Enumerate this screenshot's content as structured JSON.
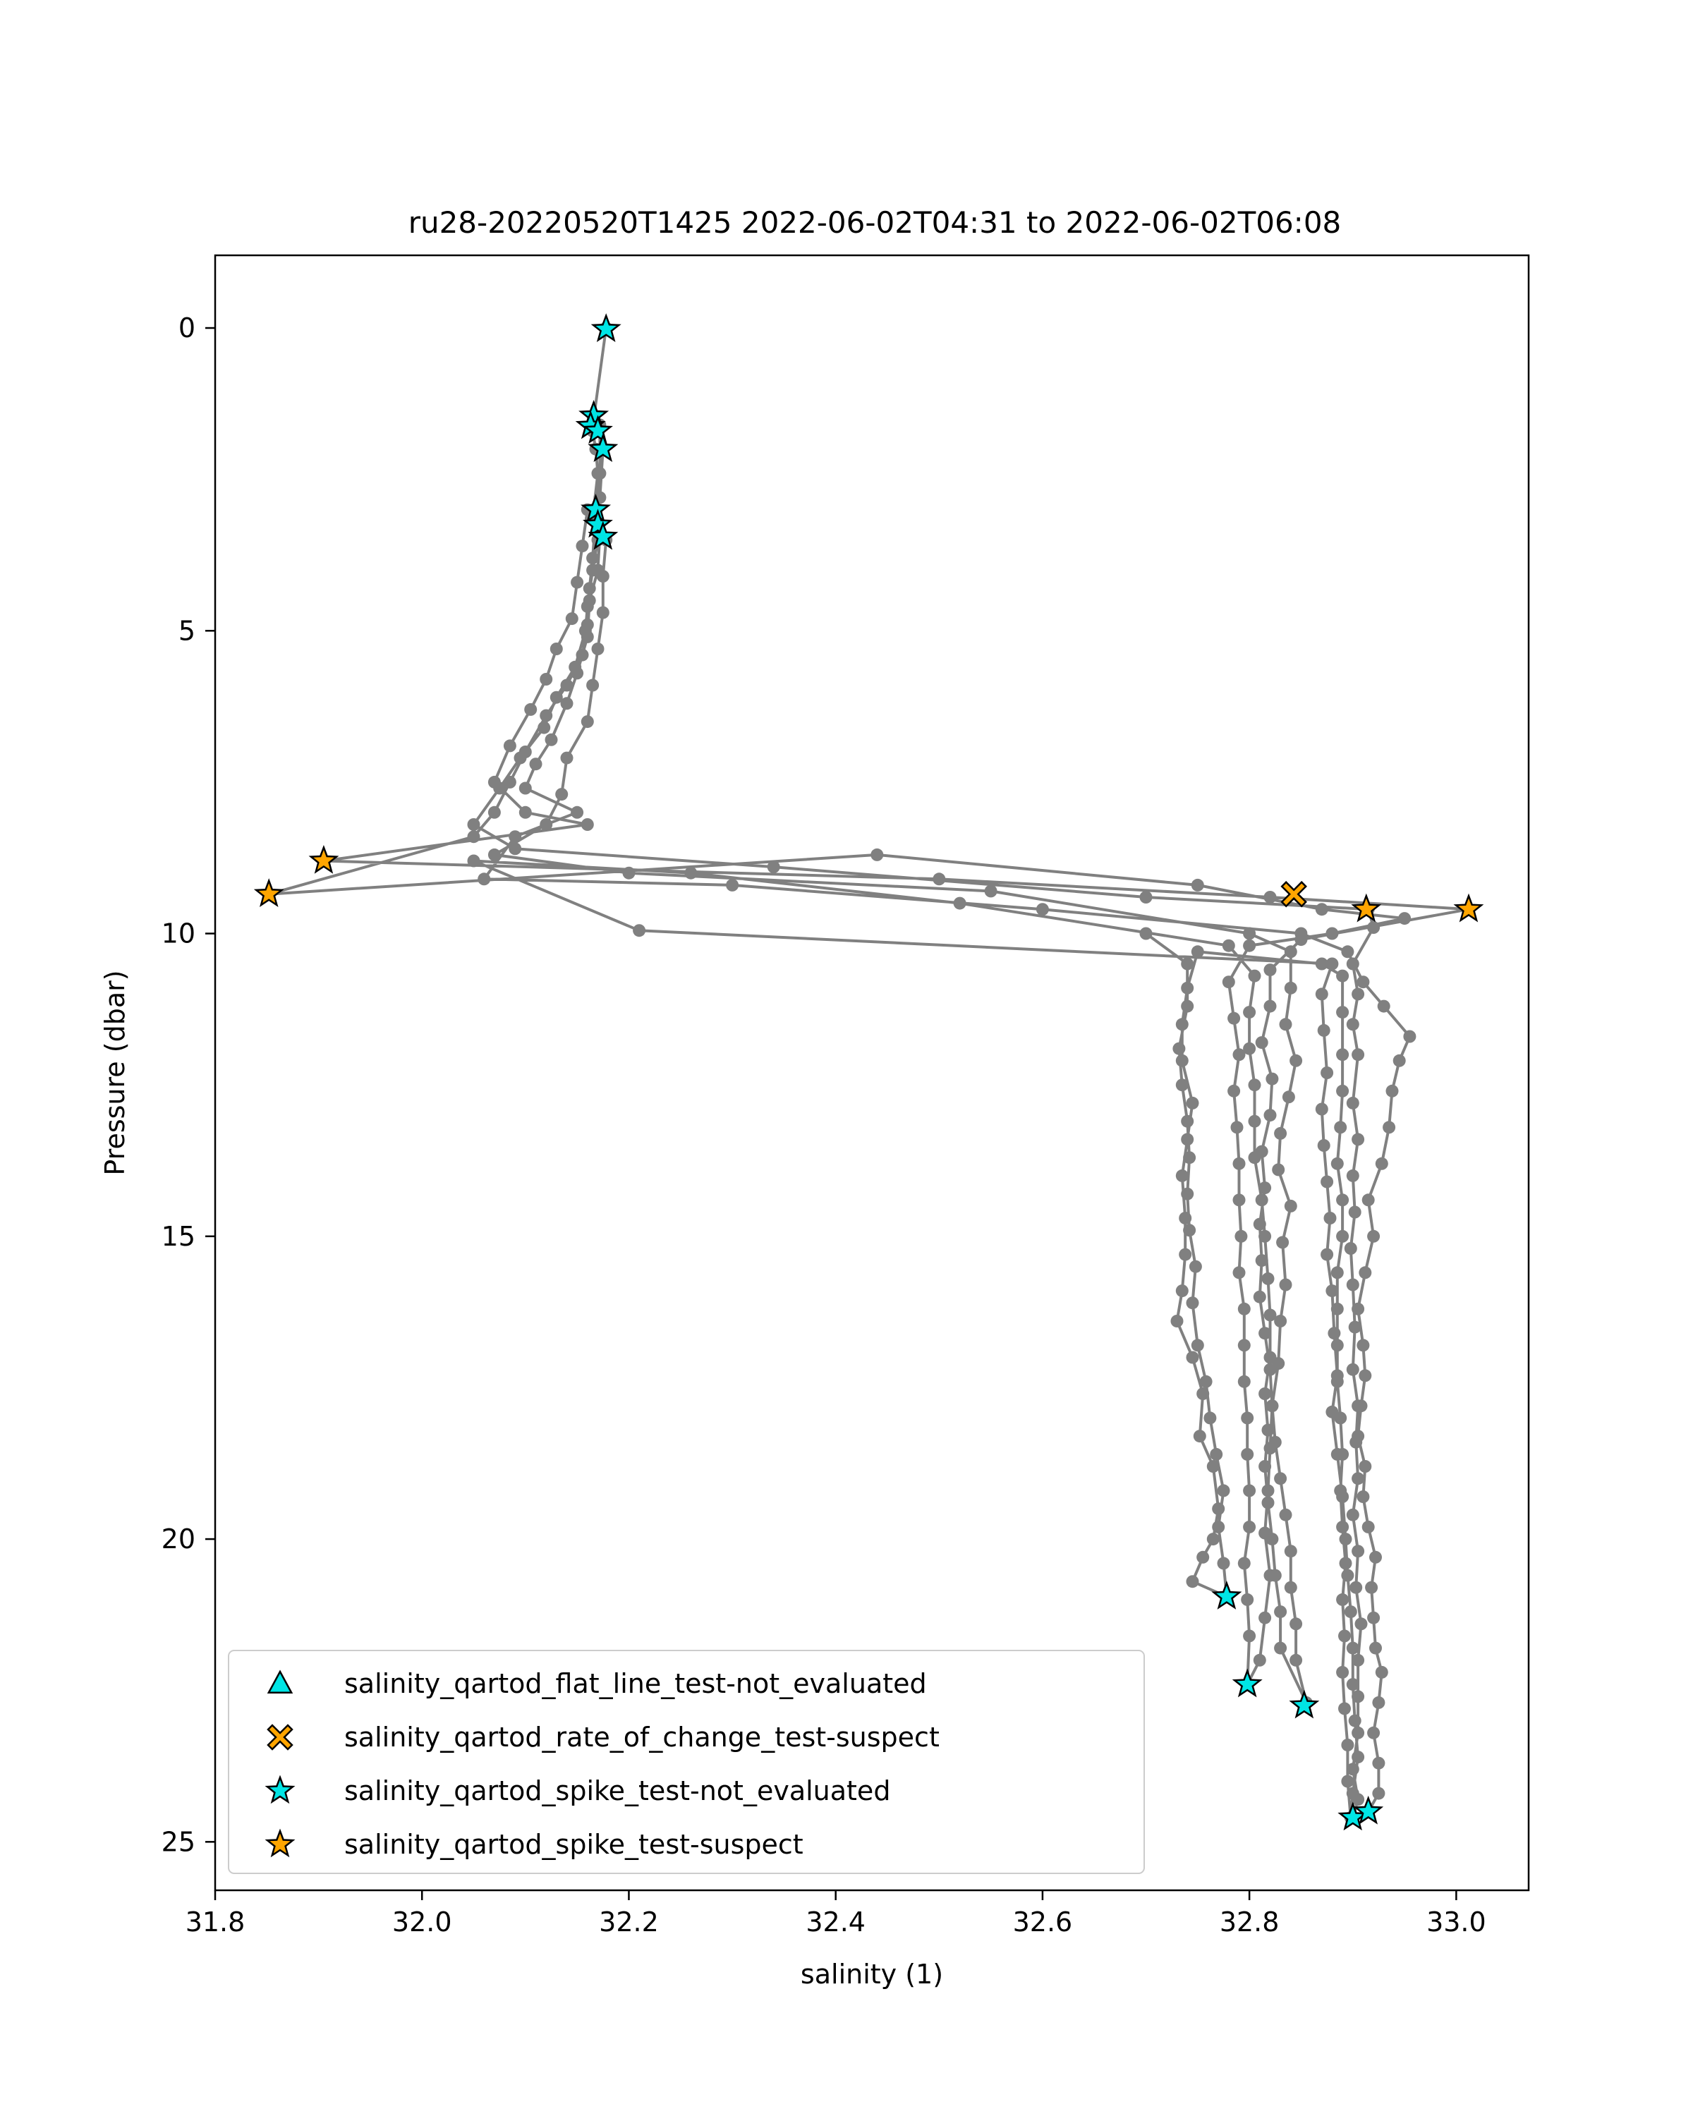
{
  "chart_data": {
    "type": "scatter",
    "title": "ru28-20220520T1425 2022-06-02T04:31 to 2022-06-02T06:08",
    "xlabel": "salinity (1)",
    "ylabel": "Pressure (dbar)",
    "xlim": [
      31.8,
      33.07
    ],
    "ylim": [
      25.8,
      -1.2
    ],
    "y_inverted": true,
    "xticks": [
      31.8,
      32.0,
      32.2,
      32.4,
      32.6,
      32.8,
      33.0
    ],
    "xtick_labels": [
      "31.8",
      "32.0",
      "32.2",
      "32.4",
      "32.6",
      "32.8",
      "33.0"
    ],
    "yticks": [
      0,
      5,
      10,
      15,
      20,
      25
    ],
    "ytick_labels": [
      "0",
      "5",
      "10",
      "15",
      "20",
      "25"
    ],
    "grid": false,
    "legend_position": "lower-left",
    "colors": {
      "profile": "#808080",
      "not_evaluated": "#00e5e5",
      "suspect": "#ffa500",
      "edge": "#000000"
    },
    "profile_track": [
      [
        32.178,
        0.0
      ],
      [
        32.166,
        1.5
      ],
      [
        32.165,
        1.7
      ],
      [
        32.168,
        2.0
      ],
      [
        32.17,
        2.4
      ],
      [
        32.166,
        3.0
      ],
      [
        32.168,
        3.2
      ],
      [
        32.17,
        3.5
      ],
      [
        32.165,
        4.0
      ],
      [
        32.16,
        4.6
      ],
      [
        32.158,
        5.0
      ],
      [
        32.148,
        5.6
      ],
      [
        32.13,
        6.1
      ],
      [
        32.118,
        6.6
      ],
      [
        32.095,
        7.1
      ],
      [
        32.075,
        7.6
      ],
      [
        32.05,
        8.2
      ],
      [
        32.09,
        8.6
      ],
      [
        32.34,
        8.9
      ],
      [
        32.7,
        9.4
      ],
      [
        32.915,
        9.6
      ],
      [
        32.92,
        9.9
      ],
      [
        32.9,
        10.5
      ],
      [
        32.905,
        11.0
      ],
      [
        32.9,
        11.5
      ],
      [
        32.905,
        12.0
      ],
      [
        32.9,
        12.8
      ],
      [
        32.905,
        13.4
      ],
      [
        32.9,
        14.0
      ],
      [
        32.902,
        14.6
      ],
      [
        32.898,
        15.2
      ],
      [
        32.9,
        15.8
      ],
      [
        32.902,
        16.5
      ],
      [
        32.9,
        17.2
      ],
      [
        32.905,
        17.8
      ],
      [
        32.903,
        18.4
      ],
      [
        32.905,
        19.0
      ],
      [
        32.9,
        19.6
      ],
      [
        32.905,
        20.2
      ],
      [
        32.903,
        20.8
      ],
      [
        32.908,
        21.4
      ],
      [
        32.905,
        22.0
      ],
      [
        32.905,
        22.6
      ],
      [
        32.905,
        23.2
      ],
      [
        32.9,
        23.8
      ],
      [
        32.905,
        24.3
      ],
      [
        32.9,
        24.6
      ],
      [
        32.915,
        24.5
      ],
      [
        32.925,
        24.2
      ],
      [
        32.925,
        23.7
      ],
      [
        32.92,
        23.2
      ],
      [
        32.925,
        22.7
      ],
      [
        32.928,
        22.2
      ],
      [
        32.922,
        21.8
      ],
      [
        32.92,
        21.3
      ],
      [
        32.918,
        20.8
      ],
      [
        32.922,
        20.3
      ],
      [
        32.915,
        19.8
      ],
      [
        32.91,
        19.3
      ],
      [
        32.912,
        18.8
      ],
      [
        32.905,
        18.3
      ],
      [
        32.908,
        17.8
      ],
      [
        32.912,
        17.3
      ],
      [
        32.91,
        16.8
      ],
      [
        32.905,
        16.2
      ],
      [
        32.912,
        15.6
      ],
      [
        32.92,
        15.0
      ],
      [
        32.915,
        14.4
      ],
      [
        32.928,
        13.8
      ],
      [
        32.935,
        13.2
      ],
      [
        32.938,
        12.6
      ],
      [
        32.945,
        12.1
      ],
      [
        32.955,
        11.7
      ],
      [
        32.93,
        11.2
      ],
      [
        32.91,
        10.8
      ],
      [
        32.895,
        10.3
      ],
      [
        32.85,
        10.0
      ],
      [
        32.6,
        9.6
      ],
      [
        32.3,
        9.2
      ],
      [
        32.06,
        9.1
      ],
      [
        32.09,
        8.4
      ],
      [
        32.15,
        8.0
      ],
      [
        32.1,
        7.6
      ],
      [
        32.11,
        7.2
      ],
      [
        32.125,
        6.8
      ],
      [
        32.14,
        6.2
      ],
      [
        32.15,
        5.7
      ],
      [
        32.16,
        5.1
      ],
      [
        32.162,
        4.5
      ],
      [
        32.17,
        4.0
      ],
      [
        32.172,
        3.4
      ],
      [
        32.172,
        2.8
      ],
      [
        32.175,
        2.0
      ],
      [
        32.172,
        1.6
      ],
      [
        32.172,
        2.4
      ],
      [
        32.168,
        3.1
      ],
      [
        32.165,
        3.8
      ],
      [
        32.162,
        4.3
      ],
      [
        32.16,
        4.9
      ],
      [
        32.155,
        5.4
      ],
      [
        32.14,
        5.9
      ],
      [
        32.12,
        6.4
      ],
      [
        32.1,
        7.0
      ],
      [
        32.085,
        7.5
      ],
      [
        32.07,
        8.0
      ],
      [
        32.05,
        8.4
      ],
      [
        31.852,
        9.35
      ],
      [
        32.44,
        8.7
      ],
      [
        32.75,
        9.2
      ],
      [
        32.87,
        9.6
      ],
      [
        32.95,
        9.75
      ],
      [
        32.88,
        10.0
      ],
      [
        32.8,
        10.2
      ],
      [
        32.78,
        10.8
      ],
      [
        32.785,
        11.4
      ],
      [
        32.79,
        12.0
      ],
      [
        32.785,
        12.6
      ],
      [
        32.788,
        13.2
      ],
      [
        32.79,
        13.8
      ],
      [
        32.79,
        14.4
      ],
      [
        32.792,
        15.0
      ],
      [
        32.79,
        15.6
      ],
      [
        32.795,
        16.2
      ],
      [
        32.795,
        16.8
      ],
      [
        32.795,
        17.4
      ],
      [
        32.798,
        18.0
      ],
      [
        32.798,
        18.6
      ],
      [
        32.8,
        19.2
      ],
      [
        32.8,
        19.8
      ],
      [
        32.795,
        20.4
      ],
      [
        32.798,
        21.0
      ],
      [
        32.8,
        21.6
      ],
      [
        32.798,
        22.4
      ],
      [
        32.81,
        22.0
      ],
      [
        32.815,
        21.3
      ],
      [
        32.82,
        20.6
      ],
      [
        32.815,
        19.9
      ],
      [
        32.818,
        19.2
      ],
      [
        32.82,
        18.5
      ],
      [
        32.822,
        17.8
      ],
      [
        32.828,
        17.1
      ],
      [
        32.83,
        16.4
      ],
      [
        32.835,
        15.8
      ],
      [
        32.832,
        15.1
      ],
      [
        32.84,
        14.5
      ],
      [
        32.828,
        13.9
      ],
      [
        32.83,
        13.3
      ],
      [
        32.838,
        12.7
      ],
      [
        32.845,
        12.1
      ],
      [
        32.835,
        11.5
      ],
      [
        32.84,
        10.9
      ],
      [
        32.84,
        10.3
      ],
      [
        32.8,
        10.0
      ],
      [
        32.55,
        9.3
      ],
      [
        32.2,
        9.0
      ],
      [
        32.07,
        8.7
      ],
      [
        32.12,
        8.2
      ],
      [
        32.135,
        7.7
      ],
      [
        32.14,
        7.1
      ],
      [
        32.16,
        6.5
      ],
      [
        32.165,
        5.9
      ],
      [
        32.17,
        5.3
      ],
      [
        32.175,
        4.7
      ],
      [
        32.175,
        4.1
      ],
      [
        32.178,
        3.5
      ],
      [
        32.16,
        3.0
      ],
      [
        32.155,
        3.6
      ],
      [
        32.15,
        4.2
      ],
      [
        32.145,
        4.8
      ],
      [
        32.13,
        5.3
      ],
      [
        32.12,
        5.8
      ],
      [
        32.105,
        6.3
      ],
      [
        32.085,
        6.9
      ],
      [
        32.07,
        7.5
      ],
      [
        32.1,
        8.0
      ],
      [
        32.16,
        8.2
      ],
      [
        31.905,
        8.8
      ],
      [
        32.5,
        9.1
      ],
      [
        32.82,
        9.4
      ],
      [
        33.012,
        9.6
      ],
      [
        32.85,
        10.1
      ],
      [
        32.82,
        10.6
      ],
      [
        32.82,
        11.2
      ],
      [
        32.812,
        11.8
      ],
      [
        32.822,
        12.4
      ],
      [
        32.82,
        13.0
      ],
      [
        32.812,
        13.6
      ],
      [
        32.815,
        14.2
      ],
      [
        32.81,
        14.8
      ],
      [
        32.812,
        15.4
      ],
      [
        32.81,
        16.0
      ],
      [
        32.815,
        16.6
      ],
      [
        32.82,
        17.2
      ],
      [
        32.822,
        17.8
      ],
      [
        32.825,
        18.4
      ],
      [
        32.83,
        19.0
      ],
      [
        32.835,
        19.6
      ],
      [
        32.84,
        20.2
      ],
      [
        32.84,
        20.8
      ],
      [
        32.845,
        21.4
      ],
      [
        32.845,
        22.0
      ],
      [
        32.855,
        22.7
      ],
      [
        32.83,
        21.8
      ],
      [
        32.83,
        21.2
      ],
      [
        32.825,
        20.6
      ],
      [
        32.822,
        20.0
      ],
      [
        32.818,
        19.4
      ],
      [
        32.815,
        18.8
      ],
      [
        32.818,
        18.2
      ],
      [
        32.815,
        17.6
      ],
      [
        32.82,
        17.0
      ],
      [
        32.82,
        16.3
      ],
      [
        32.818,
        15.7
      ],
      [
        32.815,
        15.0
      ],
      [
        32.812,
        14.4
      ],
      [
        32.805,
        13.7
      ],
      [
        32.805,
        13.1
      ],
      [
        32.805,
        12.5
      ],
      [
        32.8,
        11.9
      ],
      [
        32.8,
        11.3
      ],
      [
        32.805,
        10.7
      ],
      [
        32.78,
        10.2
      ],
      [
        32.52,
        9.5
      ],
      [
        32.26,
        9.0
      ],
      [
        32.05,
        8.8
      ],
      [
        32.21,
        9.95
      ],
      [
        32.88,
        10.5
      ],
      [
        32.87,
        11.0
      ],
      [
        32.872,
        11.6
      ],
      [
        32.875,
        12.3
      ],
      [
        32.87,
        12.9
      ],
      [
        32.872,
        13.5
      ],
      [
        32.875,
        14.1
      ],
      [
        32.878,
        14.7
      ],
      [
        32.875,
        15.3
      ],
      [
        32.88,
        15.9
      ],
      [
        32.882,
        16.6
      ],
      [
        32.885,
        17.3
      ],
      [
        32.88,
        17.9
      ],
      [
        32.885,
        18.6
      ],
      [
        32.89,
        19.3
      ],
      [
        32.893,
        20.0
      ],
      [
        32.895,
        20.6
      ],
      [
        32.898,
        21.2
      ],
      [
        32.9,
        21.8
      ],
      [
        32.9,
        22.4
      ],
      [
        32.902,
        23.0
      ],
      [
        32.905,
        23.6
      ],
      [
        32.9,
        24.2
      ],
      [
        32.898,
        24.6
      ],
      [
        32.895,
        24.0
      ],
      [
        32.895,
        23.4
      ],
      [
        32.892,
        22.8
      ],
      [
        32.89,
        22.2
      ],
      [
        32.892,
        21.6
      ],
      [
        32.89,
        21.0
      ],
      [
        32.893,
        20.4
      ],
      [
        32.89,
        19.8
      ],
      [
        32.888,
        19.2
      ],
      [
        32.89,
        18.6
      ],
      [
        32.888,
        18.0
      ],
      [
        32.885,
        17.4
      ],
      [
        32.885,
        16.8
      ],
      [
        32.885,
        16.2
      ],
      [
        32.885,
        15.6
      ],
      [
        32.89,
        15.0
      ],
      [
        32.89,
        14.4
      ],
      [
        32.885,
        13.8
      ],
      [
        32.888,
        13.2
      ],
      [
        32.89,
        12.6
      ],
      [
        32.89,
        12.0
      ],
      [
        32.89,
        11.3
      ],
      [
        32.89,
        10.7
      ],
      [
        32.87,
        10.5
      ],
      [
        32.75,
        10.3
      ],
      [
        32.74,
        10.9
      ],
      [
        32.735,
        11.5
      ],
      [
        32.735,
        12.1
      ],
      [
        32.745,
        12.8
      ],
      [
        32.74,
        13.4
      ],
      [
        32.735,
        14.0
      ],
      [
        32.738,
        14.7
      ],
      [
        32.738,
        15.3
      ],
      [
        32.735,
        15.9
      ],
      [
        32.73,
        16.4
      ],
      [
        32.745,
        17.0
      ],
      [
        32.755,
        17.6
      ],
      [
        32.752,
        18.3
      ],
      [
        32.765,
        18.8
      ],
      [
        32.77,
        19.5
      ],
      [
        32.765,
        20.0
      ],
      [
        32.755,
        20.3
      ],
      [
        32.745,
        20.7
      ],
      [
        32.778,
        20.95
      ],
      [
        32.775,
        20.4
      ],
      [
        32.77,
        19.8
      ],
      [
        32.775,
        19.2
      ],
      [
        32.768,
        18.6
      ],
      [
        32.762,
        18.0
      ],
      [
        32.758,
        17.4
      ],
      [
        32.75,
        16.8
      ],
      [
        32.745,
        16.1
      ],
      [
        32.748,
        15.5
      ],
      [
        32.742,
        14.9
      ],
      [
        32.74,
        14.3
      ],
      [
        32.742,
        13.7
      ],
      [
        32.74,
        13.1
      ],
      [
        32.735,
        12.5
      ],
      [
        32.732,
        11.9
      ],
      [
        32.74,
        11.2
      ],
      [
        32.74,
        10.5
      ],
      [
        32.7,
        10.0
      ]
    ],
    "series": [
      {
        "name": "salinity_qartod_flat_line_test-not_evaluated",
        "marker": "triangle",
        "color": "#00e5e5",
        "points": []
      },
      {
        "name": "salinity_qartod_rate_of_change_test-suspect",
        "marker": "x-filled",
        "color": "#ffa500",
        "points": [
          [
            32.843,
            9.35
          ]
        ]
      },
      {
        "name": "salinity_qartod_spike_test-not_evaluated",
        "marker": "star",
        "color": "#00e5e5",
        "points": [
          [
            32.178,
            0.02
          ],
          [
            32.166,
            1.45
          ],
          [
            32.163,
            1.62
          ],
          [
            32.17,
            1.7
          ],
          [
            32.175,
            2.0
          ],
          [
            32.168,
            3.0
          ],
          [
            32.17,
            3.25
          ],
          [
            32.175,
            3.45
          ],
          [
            32.778,
            20.95
          ],
          [
            32.798,
            22.4
          ],
          [
            32.853,
            22.75
          ],
          [
            32.9,
            24.6
          ],
          [
            32.915,
            24.5
          ]
        ]
      },
      {
        "name": "salinity_qartod_spike_test-suspect",
        "marker": "star",
        "color": "#ffa500",
        "points": [
          [
            31.852,
            9.35
          ],
          [
            31.905,
            8.8
          ],
          [
            32.913,
            9.6
          ],
          [
            33.012,
            9.6
          ]
        ]
      }
    ]
  }
}
